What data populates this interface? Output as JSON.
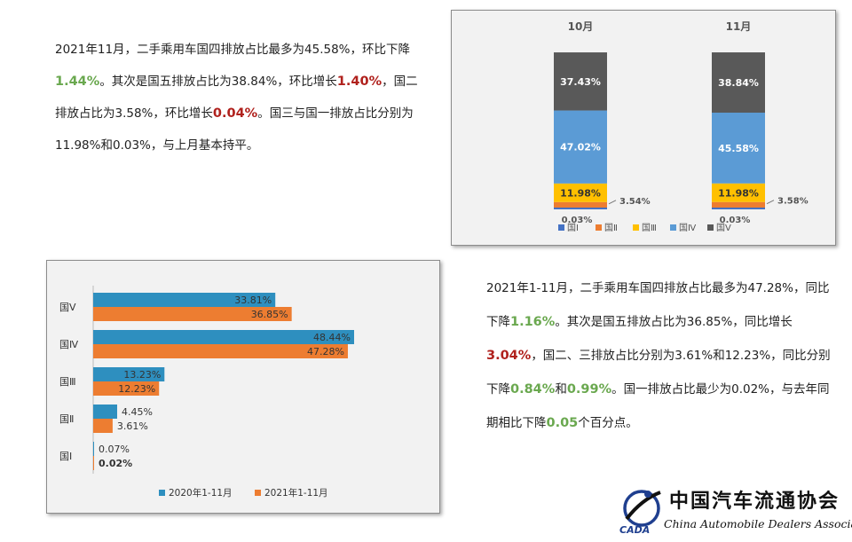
{
  "paragraph_top": {
    "segments": [
      {
        "text": "2021年11月，二手乘用车国四排放占比最多为45.58%，环比下降",
        "style": "n"
      },
      {
        "text": "1.44%",
        "style": "g"
      },
      {
        "text": "。其次是国五排放占比为38.84%，环比增长",
        "style": "n"
      },
      {
        "text": "1.40%",
        "style": "r"
      },
      {
        "text": "，国二排放占比为3.58%，环比增长",
        "style": "n"
      },
      {
        "text": "0.04%",
        "style": "r"
      },
      {
        "text": "。国三与国一排放占比分别为11.98%和0.03%，与上月基本持平。",
        "style": "n"
      }
    ]
  },
  "paragraph_bottom": {
    "segments": [
      {
        "text": "2021年1-11月，二手乘用车国四排放占比最多为47.28%，同比下降",
        "style": "n"
      },
      {
        "text": "1.16%",
        "style": "g"
      },
      {
        "text": "。其次是国五排放占比为36.85%，同比增长",
        "style": "n"
      },
      {
        "text": "3.04%",
        "style": "r"
      },
      {
        "text": "，国二、三排放占比分别为3.61%和12.23%，同比分别下降",
        "style": "n"
      },
      {
        "text": "0.84%",
        "style": "g"
      },
      {
        "text": "和",
        "style": "n"
      },
      {
        "text": "0.99%",
        "style": "g"
      },
      {
        "text": "。国一排放占比最少为0.02%，与去年同期相比下降",
        "style": "n"
      },
      {
        "text": "0.05",
        "style": "g"
      },
      {
        "text": "个百分点。",
        "style": "n"
      }
    ]
  },
  "colors": {
    "g1": "#4472c4",
    "g2": "#ed7d31",
    "g3": "#ffc000",
    "g4": "#5b9bd5",
    "g5": "#595959",
    "series2020": "#2e8fbf",
    "series2021": "#ed7d31",
    "green": "#6aa84f",
    "red": "#b0211d"
  },
  "chart_data": [
    {
      "type": "bar",
      "stacked": true,
      "categories": [
        "10月",
        "11月"
      ],
      "series": [
        {
          "name": "国Ⅰ",
          "values": [
            0.03,
            0.03
          ],
          "labels": [
            "0.03%",
            "0.03%"
          ]
        },
        {
          "name": "国Ⅱ",
          "values": [
            3.54,
            3.58
          ],
          "labels": [
            "3.54%",
            "3.58%"
          ]
        },
        {
          "name": "国Ⅲ",
          "values": [
            11.98,
            11.98
          ],
          "labels": [
            "11.98%",
            "11.98%"
          ]
        },
        {
          "name": "国Ⅳ",
          "values": [
            47.02,
            45.58
          ],
          "labels": [
            "47.02%",
            "45.58%"
          ]
        },
        {
          "name": "国Ⅴ",
          "values": [
            37.43,
            38.84
          ],
          "labels": [
            "37.43%",
            "38.84%"
          ]
        }
      ],
      "legend": "bottom",
      "ylim": [
        0,
        100
      ],
      "grid": false
    },
    {
      "type": "bar",
      "orientation": "horizontal",
      "categories": [
        "国Ⅴ",
        "国Ⅳ",
        "国Ⅲ",
        "国Ⅱ",
        "国Ⅰ"
      ],
      "series": [
        {
          "name": "2020年1-11月",
          "values": [
            33.81,
            48.44,
            13.23,
            4.45,
            0.07
          ],
          "labels": [
            "33.81%",
            "48.44%",
            "13.23%",
            "4.45%",
            "0.07%"
          ]
        },
        {
          "name": "2021年1-11月",
          "values": [
            36.85,
            47.28,
            12.23,
            3.61,
            0.02
          ],
          "labels": [
            "36.85%",
            "47.28%",
            "12.23%",
            "3.61%",
            "0.02%"
          ]
        }
      ],
      "legend": "bottom",
      "xlim": [
        0,
        55
      ],
      "grid": false
    }
  ],
  "logo": {
    "name_cn": "中国汽车流通协会",
    "name_en": "China Automobile Dealers Association",
    "mark_text": "CADA"
  }
}
